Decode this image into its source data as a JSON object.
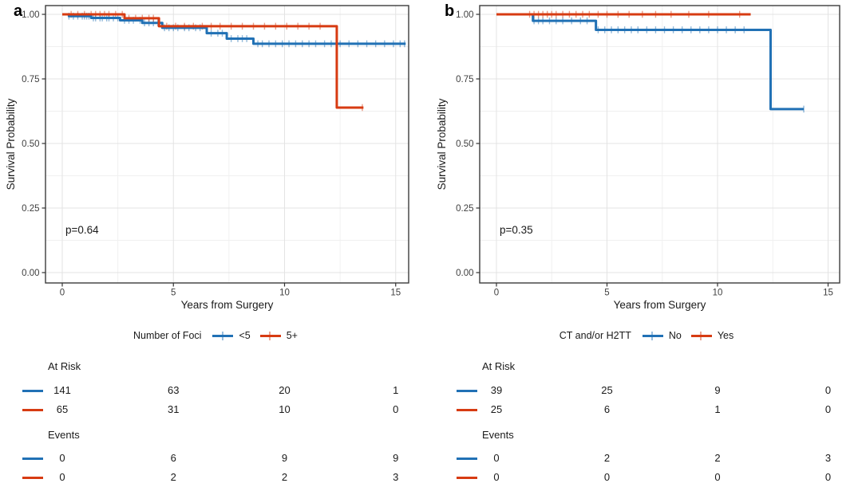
{
  "chart_data": [
    {
      "type": "line",
      "subtype": "kaplan-meier-step",
      "panel": "a",
      "xlabel": "Years from Surgery",
      "ylabel": "Survival Probability",
      "xticks": [
        0,
        5,
        10,
        15
      ],
      "xtick_labels": [
        "0",
        "5",
        "10",
        "15"
      ],
      "ytick_values": [
        1.0,
        0.75,
        0.5,
        0.25,
        0.0
      ],
      "ytick_labels": [
        "1.00",
        "0.75",
        "0.50",
        "0.25",
        "0.00"
      ],
      "xlim": [
        -0.75,
        16.3
      ],
      "ylim": [
        0,
        1.04
      ],
      "grid": true,
      "annotation": "p=0.64",
      "legend_title": "Number of Foci",
      "legend_position": "bottom-center",
      "series": [
        {
          "name": "<5",
          "color": "#2171b5",
          "steps": [
            [
              0,
              1.0
            ],
            [
              0.3,
              0.993
            ],
            [
              1.3,
              0.986
            ],
            [
              2.6,
              0.977
            ],
            [
              3.6,
              0.967
            ],
            [
              4.5,
              0.948
            ],
            [
              6.5,
              0.927
            ],
            [
              7.4,
              0.906
            ],
            [
              8.6,
              0.886
            ]
          ],
          "end_time": 15.45,
          "censor_times": [
            0.3,
            0.5,
            0.7,
            0.9,
            1.0,
            1.1,
            1.2,
            1.4,
            1.5,
            1.7,
            1.8,
            2.0,
            2.1,
            2.3,
            2.5,
            2.8,
            3.0,
            3.2,
            3.5,
            3.7,
            3.9,
            4.1,
            4.3,
            4.6,
            4.8,
            5.0,
            5.2,
            5.5,
            5.7,
            6.0,
            6.2,
            6.7,
            7.0,
            7.2,
            7.6,
            7.9,
            8.1,
            8.3,
            8.8,
            9.0,
            9.3,
            9.6,
            9.9,
            10.2,
            10.5,
            10.8,
            11.1,
            11.4,
            11.8,
            12.1,
            12.5,
            12.9,
            13.3,
            13.7,
            14.1,
            14.5,
            14.9,
            15.2,
            15.4
          ]
        },
        {
          "name": "5+",
          "color": "#d73b12",
          "steps": [
            [
              0,
              1.0
            ],
            [
              2.8,
              0.985
            ],
            [
              4.35,
              0.954
            ],
            [
              12.35,
              0.639
            ]
          ],
          "end_time": 13.55,
          "censor_times": [
            0.4,
            0.7,
            1.0,
            1.3,
            1.5,
            1.7,
            1.9,
            2.1,
            2.4,
            2.7,
            3.0,
            3.3,
            3.6,
            3.9,
            4.1,
            4.7,
            5.1,
            5.5,
            5.9,
            6.3,
            6.7,
            7.1,
            7.6,
            8.1,
            8.6,
            9.1,
            9.6,
            10.1,
            10.6,
            11.1,
            11.6,
            13.5
          ]
        }
      ],
      "risk_table": {
        "times": [
          0,
          5,
          10,
          15
        ],
        "sections": [
          {
            "label": "At Risk",
            "rows": [
              {
                "series": "<5",
                "values": [
                  141,
                  63,
                  20,
                  1
                ]
              },
              {
                "series": "5+",
                "values": [
                  65,
                  31,
                  10,
                  0
                ]
              }
            ]
          },
          {
            "label": "Events",
            "rows": [
              {
                "series": "<5",
                "values": [
                  0,
                  6,
                  9,
                  9
                ]
              },
              {
                "series": "5+",
                "values": [
                  0,
                  2,
                  2,
                  3
                ]
              }
            ]
          }
        ]
      }
    },
    {
      "type": "line",
      "subtype": "kaplan-meier-step",
      "panel": "b",
      "xlabel": "Years from Surgery",
      "ylabel": "Survival Probability",
      "xticks": [
        0,
        5,
        10,
        15
      ],
      "xtick_labels": [
        "0",
        "5",
        "10",
        "15"
      ],
      "ytick_values": [
        1.0,
        0.75,
        0.5,
        0.25,
        0.0
      ],
      "ytick_labels": [
        "1.00",
        "0.75",
        "0.50",
        "0.25",
        "0.00"
      ],
      "xlim": [
        -0.75,
        16.3
      ],
      "ylim": [
        0,
        1.04
      ],
      "grid": true,
      "annotation": "p=0.35",
      "legend_title": "CT and/or H2TT",
      "legend_position": "bottom-center",
      "series": [
        {
          "name": "No",
          "color": "#2171b5",
          "steps": [
            [
              0,
              1.0
            ],
            [
              1.65,
              0.975
            ],
            [
              4.5,
              0.94
            ],
            [
              12.4,
              0.633
            ]
          ],
          "end_time": 13.9,
          "censor_times": [
            1.7,
            1.9,
            2.1,
            2.4,
            2.7,
            3.0,
            3.4,
            3.8,
            4.1,
            4.6,
            4.9,
            5.2,
            5.5,
            5.8,
            6.1,
            6.4,
            6.8,
            7.2,
            7.6,
            8.0,
            8.4,
            8.8,
            9.2,
            9.6,
            10.0,
            10.4,
            10.8,
            11.2,
            13.9
          ]
        },
        {
          "name": "Yes",
          "color": "#d73b12",
          "steps": [
            [
              0,
              1.0
            ]
          ],
          "end_time": 11.5,
          "censor_times": [
            1.5,
            1.7,
            1.9,
            2.1,
            2.3,
            2.5,
            2.7,
            3.0,
            3.3,
            3.6,
            3.9,
            4.2,
            4.6,
            5.0,
            5.5,
            6.0,
            6.6,
            7.2,
            7.9,
            8.7,
            9.6,
            11.0
          ]
        }
      ],
      "risk_table": {
        "times": [
          0,
          5,
          10,
          15
        ],
        "sections": [
          {
            "label": "At Risk",
            "rows": [
              {
                "series": "No",
                "values": [
                  39,
                  25,
                  9,
                  0
                ]
              },
              {
                "series": "Yes",
                "values": [
                  25,
                  6,
                  1,
                  0
                ]
              }
            ]
          },
          {
            "label": "Events",
            "rows": [
              {
                "series": "No",
                "values": [
                  0,
                  2,
                  2,
                  3
                ]
              },
              {
                "series": "Yes",
                "values": [
                  0,
                  0,
                  0,
                  0
                ]
              }
            ]
          }
        ]
      }
    }
  ],
  "style": {
    "grid_major_color": "#e3e3e3",
    "grid_minor_color": "#f0f0f0",
    "panel_border_color": "#3c3c3c",
    "tick_label_color": "#404040",
    "censor_opacity": 0.5
  }
}
